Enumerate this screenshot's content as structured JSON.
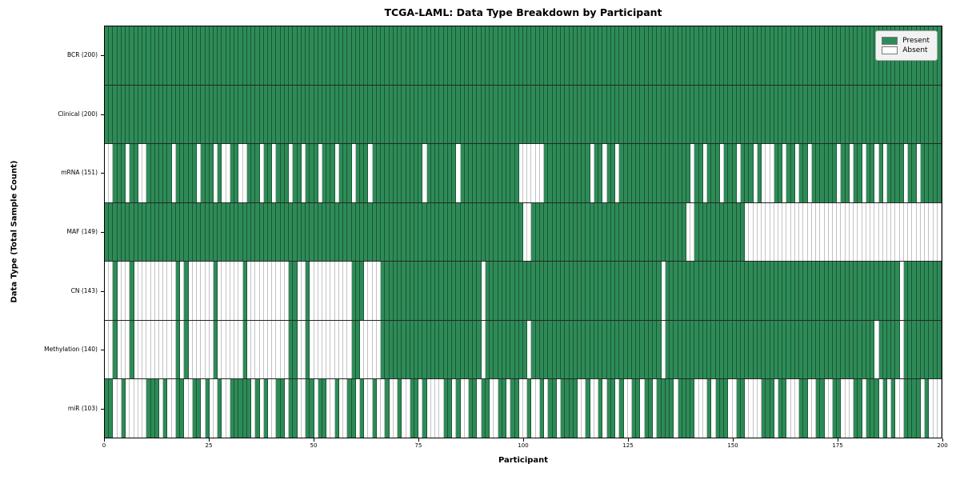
{
  "chart_data": {
    "type": "heatmap",
    "title": "TCGA-LAML: Data Type Breakdown by Participant",
    "xlabel": "Participant",
    "ylabel": "Data Type (Total Sample Count)",
    "x_ticks": [
      0,
      25,
      50,
      75,
      100,
      125,
      150,
      175,
      200
    ],
    "n_participants": 200,
    "xlim": [
      0,
      200
    ],
    "grid": false,
    "legend_position": "upper right",
    "legend": [
      {
        "label": "Present",
        "color": "#2e8b57"
      },
      {
        "label": "Absent",
        "color": "#ffffff"
      }
    ],
    "rows": [
      {
        "label": "BCR (200)",
        "name": "BCR",
        "present_count": 200,
        "absent": []
      },
      {
        "label": "Clinical (200)",
        "name": "Clinical",
        "present_count": 200,
        "absent": []
      },
      {
        "label": "mRNA (151)",
        "name": "mRNA",
        "present_count": 151,
        "absent": [
          0,
          1,
          5,
          8,
          9,
          16,
          22,
          26,
          28,
          29,
          32,
          33,
          37,
          40,
          44,
          47,
          51,
          55,
          59,
          63,
          76,
          84,
          99,
          100,
          101,
          102,
          103,
          104,
          116,
          119,
          122,
          140,
          143,
          147,
          151,
          155,
          157,
          158,
          159,
          162,
          165,
          168,
          175,
          178,
          181,
          184,
          186,
          191,
          194
        ]
      },
      {
        "label": "MAF (149)",
        "name": "MAF",
        "present_count": 149,
        "absent": [
          100,
          101,
          139,
          140,
          153,
          154,
          155,
          156,
          157,
          158,
          159,
          160,
          161,
          162,
          163,
          164,
          165,
          166,
          167,
          168,
          169,
          170,
          171,
          172,
          173,
          174,
          175,
          176,
          177,
          178,
          179,
          180,
          181,
          182,
          183,
          184,
          185,
          186,
          187,
          188,
          189,
          190,
          191,
          192,
          193,
          194,
          195,
          196,
          197,
          198,
          199
        ]
      },
      {
        "label": "CN (143)",
        "name": "CN",
        "present_count": 143,
        "absent": [
          0,
          1,
          3,
          4,
          5,
          7,
          8,
          9,
          10,
          11,
          12,
          13,
          14,
          15,
          16,
          18,
          20,
          21,
          22,
          23,
          24,
          25,
          27,
          28,
          29,
          30,
          31,
          32,
          34,
          35,
          36,
          37,
          38,
          39,
          40,
          41,
          42,
          43,
          46,
          47,
          49,
          50,
          51,
          52,
          53,
          54,
          55,
          56,
          57,
          58,
          62,
          63,
          64,
          65,
          90,
          133,
          190
        ]
      },
      {
        "label": "Methylation (140)",
        "name": "Methylation",
        "present_count": 140,
        "absent": [
          0,
          1,
          3,
          4,
          5,
          7,
          8,
          9,
          10,
          11,
          12,
          13,
          14,
          15,
          16,
          18,
          20,
          21,
          22,
          23,
          24,
          25,
          27,
          28,
          29,
          30,
          31,
          32,
          34,
          35,
          36,
          37,
          38,
          39,
          40,
          41,
          42,
          43,
          46,
          47,
          49,
          50,
          51,
          52,
          53,
          54,
          55,
          56,
          57,
          58,
          61,
          62,
          63,
          64,
          65,
          90,
          101,
          133,
          184,
          190
        ]
      },
      {
        "label": "miR (103)",
        "name": "miR",
        "present_count": 103,
        "absent": [
          2,
          3,
          5,
          6,
          7,
          8,
          9,
          13,
          15,
          16,
          19,
          20,
          23,
          25,
          26,
          28,
          29,
          35,
          37,
          39,
          40,
          43,
          46,
          47,
          50,
          53,
          54,
          56,
          57,
          60,
          62,
          63,
          65,
          66,
          68,
          69,
          71,
          72,
          75,
          77,
          78,
          79,
          80,
          83,
          85,
          86,
          89,
          92,
          93,
          96,
          99,
          100,
          102,
          103,
          105,
          108,
          113,
          114,
          116,
          117,
          119,
          122,
          124,
          125,
          128,
          131,
          136,
          141,
          142,
          143,
          145,
          149,
          150,
          153,
          154,
          155,
          156,
          160,
          163,
          164,
          165,
          168,
          169,
          172,
          173,
          176,
          177,
          178,
          181,
          185,
          187,
          189,
          190,
          195,
          197,
          198,
          199
        ]
      }
    ],
    "colors": {
      "present": "#2e8b57",
      "absent": "#ffffff",
      "row_divider": "#000000"
    }
  }
}
